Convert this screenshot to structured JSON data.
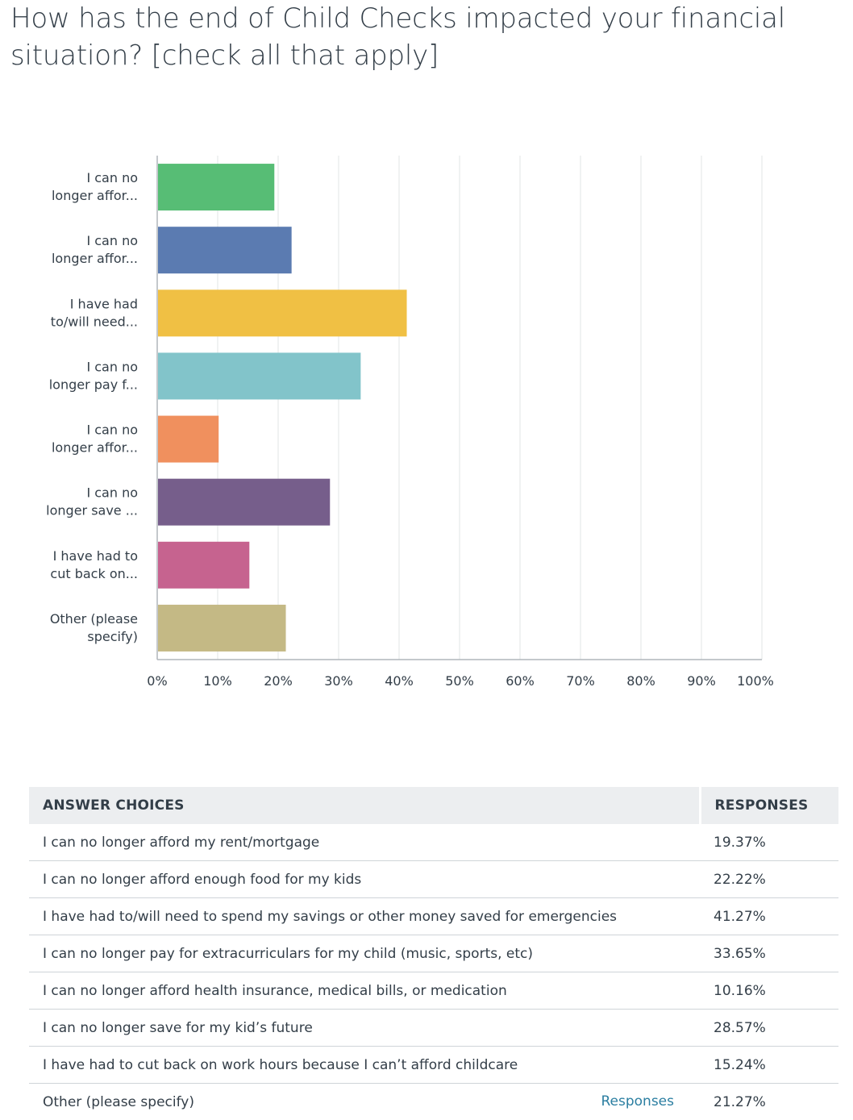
{
  "title": "How has the end of Child Checks impacted your financial situation? [check all that apply]",
  "colors": {
    "bars": [
      "#57bd75",
      "#5b7bb1",
      "#f0c044",
      "#82c4ca",
      "#f0905e",
      "#765e8b",
      "#c6638f",
      "#c4b985"
    ],
    "grid": "#e1e4e6",
    "axis": "#b0b6bb",
    "link": "#2b7ea1"
  },
  "chart_data": {
    "type": "bar",
    "orientation": "horizontal",
    "categories": [
      [
        "I can no",
        "longer affor..."
      ],
      [
        "I can no",
        "longer affor..."
      ],
      [
        "I have had",
        "to/will need..."
      ],
      [
        "I can no",
        "longer pay f..."
      ],
      [
        "I can no",
        "longer affor..."
      ],
      [
        "I can no",
        "longer save ..."
      ],
      [
        "I have had to",
        "cut back on..."
      ],
      [
        "Other (please",
        "specify)"
      ]
    ],
    "values": [
      19.37,
      22.22,
      41.27,
      33.65,
      10.16,
      28.57,
      15.24,
      21.27
    ],
    "xlim": [
      0,
      100
    ],
    "xticks": [
      "0%",
      "10%",
      "20%",
      "30%",
      "40%",
      "50%",
      "60%",
      "70%",
      "80%",
      "90%",
      "100%"
    ],
    "grid": true
  },
  "table": {
    "headers": {
      "choice": "ANSWER CHOICES",
      "responses": "RESPONSES"
    },
    "rows": [
      {
        "choice": "I can no longer afford my rent/mortgage",
        "pct": "19.37%"
      },
      {
        "choice": "I can no longer afford enough food for my kids",
        "pct": "22.22%"
      },
      {
        "choice": "I have had to/will need to spend my savings or other money saved for emergencies",
        "pct": "41.27%"
      },
      {
        "choice": "I can no longer pay for extracurriculars for my child (music, sports, etc)",
        "pct": "33.65%"
      },
      {
        "choice": "I can no longer afford health insurance, medical bills, or medication",
        "pct": "10.16%"
      },
      {
        "choice": "I can no longer save for my kid’s future",
        "pct": "28.57%"
      },
      {
        "choice": "I have had to cut back on work hours because I can’t afford childcare",
        "pct": "15.24%"
      },
      {
        "choice": "Other (please specify)",
        "pct": "21.27%",
        "link": "Responses"
      }
    ]
  }
}
